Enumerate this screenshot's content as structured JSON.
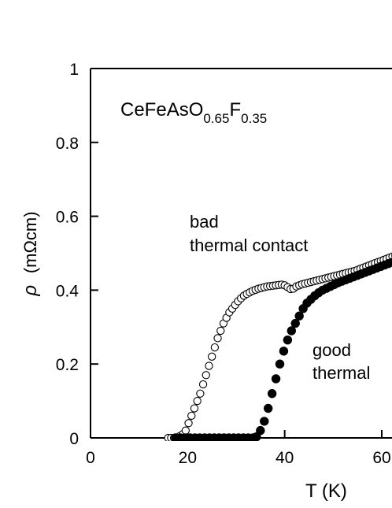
{
  "chart_data": {
    "type": "scatter",
    "title": "",
    "compound": {
      "base": "CeFeAsO",
      "sub1": "0.65",
      "mid": "F",
      "sub2": "0.35"
    },
    "xlabel": "T (K)",
    "ylabel": {
      "symbol": "ρ",
      "units": "(mΩcm)"
    },
    "xlim": [
      0,
      64
    ],
    "ylim": [
      0,
      1
    ],
    "xticks": [
      0,
      20,
      40,
      60
    ],
    "xtick_labels": [
      "0",
      "20",
      "40",
      "60"
    ],
    "yticks": [
      0,
      0.2,
      0.4,
      0.6,
      0.8,
      1
    ],
    "ytick_labels": [
      "0",
      "0.2",
      "0.4",
      "0.6",
      "0.8",
      "1"
    ],
    "grid": false,
    "annotations": [
      {
        "lines": [
          "bad",
          "thermal contact"
        ],
        "near_series": "open"
      },
      {
        "lines": [
          "good",
          "thermal"
        ],
        "near_series": "filled"
      }
    ],
    "series": [
      {
        "marker": "open-circle",
        "points": [
          [
            16.0,
            0.0
          ],
          [
            16.6,
            0.0
          ],
          [
            17.2,
            0.0
          ],
          [
            17.8,
            0.0
          ],
          [
            18.4,
            0.005
          ],
          [
            19.0,
            0.01
          ],
          [
            19.6,
            0.02
          ],
          [
            20.2,
            0.04
          ],
          [
            20.8,
            0.06
          ],
          [
            21.4,
            0.08
          ],
          [
            22.0,
            0.1
          ],
          [
            22.6,
            0.12
          ],
          [
            23.2,
            0.145
          ],
          [
            23.8,
            0.17
          ],
          [
            24.4,
            0.195
          ],
          [
            25.0,
            0.22
          ],
          [
            25.6,
            0.245
          ],
          [
            26.2,
            0.27
          ],
          [
            26.8,
            0.29
          ],
          [
            27.4,
            0.31
          ],
          [
            28.0,
            0.325
          ],
          [
            28.6,
            0.34
          ],
          [
            29.2,
            0.35
          ],
          [
            29.8,
            0.36
          ],
          [
            30.4,
            0.37
          ],
          [
            31.0,
            0.378
          ],
          [
            31.6,
            0.385
          ],
          [
            32.2,
            0.39
          ],
          [
            32.8,
            0.394
          ],
          [
            33.4,
            0.398
          ],
          [
            34.0,
            0.401
          ],
          [
            34.6,
            0.404
          ],
          [
            35.2,
            0.406
          ],
          [
            35.8,
            0.408
          ],
          [
            36.4,
            0.41
          ],
          [
            37.0,
            0.411
          ],
          [
            37.6,
            0.412
          ],
          [
            38.2,
            0.413
          ],
          [
            38.8,
            0.414
          ],
          [
            39.4,
            0.415
          ],
          [
            40.0,
            0.413
          ],
          [
            40.6,
            0.408
          ],
          [
            41.2,
            0.403
          ],
          [
            41.8,
            0.404
          ],
          [
            42.4,
            0.41
          ],
          [
            43.0,
            0.413
          ],
          [
            43.6,
            0.416
          ],
          [
            44.2,
            0.418
          ],
          [
            44.8,
            0.42
          ],
          [
            45.4,
            0.422
          ],
          [
            46.0,
            0.424
          ],
          [
            46.6,
            0.426
          ],
          [
            47.2,
            0.428
          ],
          [
            47.8,
            0.43
          ],
          [
            48.4,
            0.432
          ],
          [
            49.0,
            0.434
          ],
          [
            49.6,
            0.436
          ],
          [
            50.2,
            0.438
          ],
          [
            50.8,
            0.44
          ],
          [
            51.4,
            0.442
          ],
          [
            52.0,
            0.444
          ],
          [
            52.6,
            0.446
          ],
          [
            53.2,
            0.448
          ],
          [
            53.8,
            0.45
          ],
          [
            54.4,
            0.452
          ],
          [
            55.0,
            0.455
          ],
          [
            55.6,
            0.458
          ],
          [
            56.2,
            0.461
          ],
          [
            56.8,
            0.464
          ],
          [
            57.4,
            0.467
          ],
          [
            58.0,
            0.47
          ],
          [
            58.6,
            0.473
          ],
          [
            59.2,
            0.476
          ],
          [
            59.8,
            0.479
          ],
          [
            60.4,
            0.482
          ],
          [
            61.0,
            0.485
          ],
          [
            61.6,
            0.488
          ],
          [
            62.2,
            0.491
          ],
          [
            62.8,
            0.494
          ],
          [
            63.4,
            0.497
          ]
        ]
      },
      {
        "marker": "filled-circle",
        "points": [
          [
            17.5,
            0.0
          ],
          [
            18.5,
            0.0
          ],
          [
            19.5,
            0.0
          ],
          [
            20.5,
            0.0
          ],
          [
            21.5,
            0.0
          ],
          [
            22.5,
            0.0
          ],
          [
            23.5,
            0.0
          ],
          [
            24.5,
            0.0
          ],
          [
            25.5,
            0.0
          ],
          [
            26.5,
            0.0
          ],
          [
            27.5,
            0.0
          ],
          [
            28.5,
            0.0
          ],
          [
            29.5,
            0.0
          ],
          [
            30.5,
            0.0
          ],
          [
            31.5,
            0.0
          ],
          [
            32.5,
            0.0
          ],
          [
            33.5,
            0.0
          ],
          [
            34.2,
            0.003
          ],
          [
            35.0,
            0.02
          ],
          [
            35.8,
            0.045
          ],
          [
            36.6,
            0.08
          ],
          [
            37.4,
            0.12
          ],
          [
            38.2,
            0.16
          ],
          [
            39.0,
            0.2
          ],
          [
            39.8,
            0.235
          ],
          [
            40.6,
            0.265
          ],
          [
            41.4,
            0.29
          ],
          [
            42.2,
            0.31
          ],
          [
            43.0,
            0.33
          ],
          [
            43.8,
            0.35
          ],
          [
            44.6,
            0.365
          ],
          [
            45.4,
            0.375
          ],
          [
            46.2,
            0.385
          ],
          [
            47.0,
            0.393
          ],
          [
            47.8,
            0.4
          ],
          [
            48.6,
            0.405
          ],
          [
            49.4,
            0.41
          ],
          [
            50.2,
            0.415
          ],
          [
            51.0,
            0.42
          ],
          [
            51.8,
            0.424
          ],
          [
            52.6,
            0.428
          ],
          [
            53.4,
            0.432
          ],
          [
            54.2,
            0.436
          ],
          [
            55.0,
            0.44
          ],
          [
            55.8,
            0.444
          ],
          [
            56.6,
            0.448
          ],
          [
            57.4,
            0.452
          ],
          [
            58.2,
            0.456
          ],
          [
            59.0,
            0.46
          ],
          [
            59.8,
            0.464
          ],
          [
            60.6,
            0.468
          ],
          [
            61.4,
            0.472
          ],
          [
            62.2,
            0.476
          ],
          [
            63.0,
            0.48
          ]
        ]
      }
    ]
  }
}
